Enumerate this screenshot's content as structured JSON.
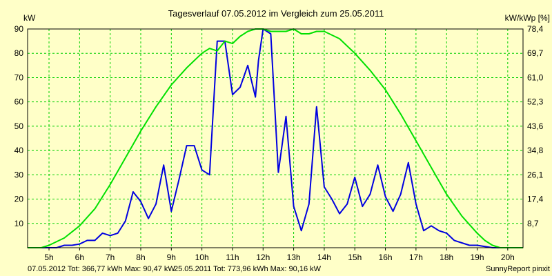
{
  "chart_data": {
    "type": "line",
    "title": "Tagesverlauf 07.05.2012 im Vergleich zum 25.05.2011",
    "ylabel_left": "kW",
    "ylabel_right": "kW/kWp [%]",
    "x_ticks": [
      "5h",
      "6h",
      "7h",
      "8h",
      "9h",
      "10h",
      "11h",
      "12h",
      "13h",
      "14h",
      "15h",
      "16h",
      "17h",
      "18h",
      "19h",
      "20h"
    ],
    "xlim": [
      4.3,
      20.5
    ],
    "y_ticks_left": [
      10,
      20,
      30,
      40,
      50,
      60,
      70,
      80,
      90
    ],
    "y_ticks_right": [
      "8,7",
      "17,4",
      "26,1",
      "34,8",
      "43,6",
      "52,3",
      "61,0",
      "69,7",
      "78,4"
    ],
    "ylim": [
      0,
      90
    ],
    "grid": true,
    "background": "#ffffc8",
    "grid_color": "#00d000",
    "series": [
      {
        "name": "07.05.2012",
        "color": "#0000e0",
        "x": [
          4.3,
          5.0,
          5.25,
          5.5,
          5.75,
          6.0,
          6.25,
          6.5,
          6.75,
          7.0,
          7.25,
          7.5,
          7.75,
          8.0,
          8.25,
          8.5,
          8.75,
          9.0,
          9.25,
          9.5,
          9.75,
          10.0,
          10.25,
          10.5,
          10.75,
          11.0,
          11.25,
          11.5,
          11.75,
          11.85,
          12.0,
          12.25,
          12.5,
          12.75,
          13.0,
          13.25,
          13.5,
          13.75,
          14.0,
          14.25,
          14.5,
          14.75,
          15.0,
          15.25,
          15.5,
          15.75,
          16.0,
          16.25,
          16.5,
          16.75,
          17.0,
          17.25,
          17.5,
          17.75,
          18.0,
          18.25,
          18.5,
          18.75,
          19.0,
          19.25,
          19.5,
          19.75,
          20.0,
          20.5
        ],
        "y": [
          0,
          0,
          0,
          1,
          1,
          1.5,
          3,
          3,
          6,
          5,
          6,
          11,
          23,
          19,
          12,
          18,
          34,
          15,
          28,
          42,
          42,
          32,
          30,
          85,
          85,
          63,
          66,
          75,
          62,
          77,
          90,
          88,
          31,
          54,
          17,
          7,
          18,
          58,
          25,
          20,
          14,
          18,
          29,
          17,
          22,
          34,
          21,
          15,
          22,
          35,
          18,
          7,
          9,
          7,
          6,
          3,
          2,
          1,
          1,
          0.5,
          0,
          0,
          0,
          0
        ]
      },
      {
        "name": "25.05.2011",
        "color": "#00e000",
        "x": [
          4.3,
          4.75,
          5.0,
          5.5,
          6.0,
          6.5,
          7.0,
          7.5,
          8.0,
          8.5,
          9.0,
          9.5,
          10.0,
          10.25,
          10.5,
          10.75,
          11.0,
          11.25,
          11.5,
          11.75,
          12.0,
          12.25,
          12.5,
          12.75,
          13.0,
          13.25,
          13.5,
          13.75,
          14.0,
          14.5,
          15.0,
          15.5,
          16.0,
          16.5,
          17.0,
          17.5,
          18.0,
          18.5,
          19.0,
          19.25,
          19.5,
          19.75,
          20.0,
          20.5
        ],
        "y": [
          0,
          0,
          1,
          4,
          9,
          16,
          26,
          37,
          48,
          58,
          67,
          74,
          80,
          82,
          81,
          85,
          84,
          87,
          89,
          90,
          90,
          89,
          89,
          89,
          90,
          88,
          88,
          89,
          89,
          86,
          80,
          73,
          65,
          55,
          44,
          33,
          22,
          13,
          6,
          3,
          1,
          0,
          0,
          0
        ]
      }
    ],
    "footer": [
      {
        "text": "07.05.2012 Tot: 366,77 kWh Max: 90,47 kW",
        "color": "#0000e0"
      },
      {
        "text": "25.05.2011 Tot: 773,96 kWh Max: 90,16 kW",
        "color": "#00c000"
      },
      {
        "text": "SunnyReport pinxit",
        "color": "#000000"
      }
    ]
  }
}
